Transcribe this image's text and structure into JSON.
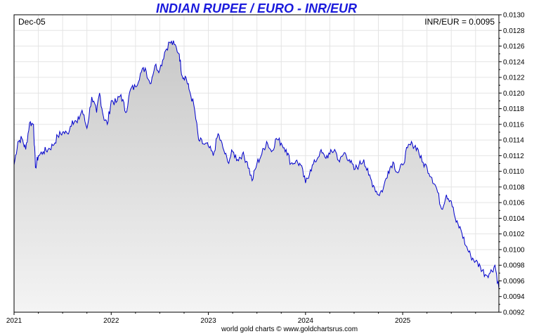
{
  "chart_data": {
    "type": "area",
    "title": "INDIAN RUPEE / EURO - INR/EUR",
    "date_label": "Dec-05",
    "current_value_label": "INR/EUR = 0.0095",
    "credit": "world gold charts © www.goldchartsrus.com",
    "xlabel": "",
    "ylabel": "",
    "x_ticks": [
      "2021",
      "2022",
      "2023",
      "2024",
      "2025"
    ],
    "x_range": [
      2021.0,
      2025.99
    ],
    "ylim": [
      0.0092,
      0.013
    ],
    "y_ticks": [
      "0.0130",
      "0.0128",
      "0.0126",
      "0.0124",
      "0.0122",
      "0.0120",
      "0.0118",
      "0.0116",
      "0.0114",
      "0.0112",
      "0.0110",
      "0.0108",
      "0.0106",
      "0.0104",
      "0.0102",
      "0.0100",
      "0.0098",
      "0.0096",
      "0.0094",
      "0.0092"
    ],
    "grid": true,
    "colors": {
      "line": "#0000cc",
      "fill_top": "#c8c8c8",
      "fill_bottom": "#f4f4f4",
      "grid": "#e4e4e4",
      "title": "#1a1adc"
    },
    "series": [
      {
        "x": [
          2021.0,
          2021.04,
          2021.08,
          2021.12,
          2021.16,
          2021.2,
          2021.22,
          2021.25,
          2021.3,
          2021.35,
          2021.4,
          2021.45,
          2021.5,
          2021.55,
          2021.6,
          2021.65,
          2021.7,
          2021.75,
          2021.8,
          2021.85,
          2021.88,
          2021.92,
          2021.96,
          2022.0,
          2022.05,
          2022.1,
          2022.15,
          2022.2,
          2022.25,
          2022.3,
          2022.35,
          2022.4,
          2022.45,
          2022.5,
          2022.55,
          2022.6,
          2022.65,
          2022.7,
          2022.73,
          2022.77,
          2022.8,
          2022.85,
          2022.9,
          2022.95,
          2023.0,
          2023.05,
          2023.1,
          2023.15,
          2023.2,
          2023.25,
          2023.3,
          2023.35,
          2023.4,
          2023.45,
          2023.5,
          2023.55,
          2023.6,
          2023.65,
          2023.7,
          2023.75,
          2023.8,
          2023.85,
          2023.9,
          2023.95,
          2024.0,
          2024.05,
          2024.1,
          2024.15,
          2024.2,
          2024.25,
          2024.3,
          2024.35,
          2024.4,
          2024.45,
          2024.5,
          2024.55,
          2024.6,
          2024.65,
          2024.7,
          2024.75,
          2024.8,
          2024.85,
          2024.9,
          2024.95,
          2025.0,
          2025.05,
          2025.1,
          2025.15,
          2025.2,
          2025.25,
          2025.3,
          2025.35,
          2025.4,
          2025.45,
          2025.5,
          2025.55,
          2025.6,
          2025.65,
          2025.7,
          2025.75,
          2025.8,
          2025.85,
          2025.9,
          2025.95,
          2025.99
        ],
        "y": [
          0.01108,
          0.01138,
          0.01142,
          0.01128,
          0.01162,
          0.0116,
          0.01105,
          0.0112,
          0.01125,
          0.01128,
          0.01133,
          0.01145,
          0.0115,
          0.01148,
          0.01165,
          0.01162,
          0.01178,
          0.01155,
          0.01195,
          0.01175,
          0.012,
          0.0117,
          0.0116,
          0.0119,
          0.01188,
          0.01198,
          0.01175,
          0.01205,
          0.01208,
          0.01225,
          0.01232,
          0.01212,
          0.01235,
          0.0123,
          0.01252,
          0.01265,
          0.01262,
          0.0125,
          0.01222,
          0.0122,
          0.01205,
          0.01185,
          0.0114,
          0.01135,
          0.01132,
          0.0112,
          0.01148,
          0.0113,
          0.01112,
          0.01125,
          0.01115,
          0.01122,
          0.01112,
          0.01088,
          0.0111,
          0.01122,
          0.01138,
          0.01125,
          0.01142,
          0.01136,
          0.01128,
          0.0111,
          0.01113,
          0.01108,
          0.01085,
          0.01102,
          0.01112,
          0.01125,
          0.01118,
          0.01122,
          0.01128,
          0.01112,
          0.01124,
          0.01115,
          0.01102,
          0.01108,
          0.01115,
          0.01095,
          0.01082,
          0.0107,
          0.01078,
          0.011,
          0.01112,
          0.01098,
          0.01108,
          0.0113,
          0.01135,
          0.0113,
          0.01112,
          0.01105,
          0.01092,
          0.01078,
          0.01052,
          0.0107,
          0.01062,
          0.01035,
          0.01025,
          0.01005,
          0.00992,
          0.00985,
          0.00978,
          0.00968,
          0.0097,
          0.0098,
          0.0095
        ]
      }
    ]
  }
}
